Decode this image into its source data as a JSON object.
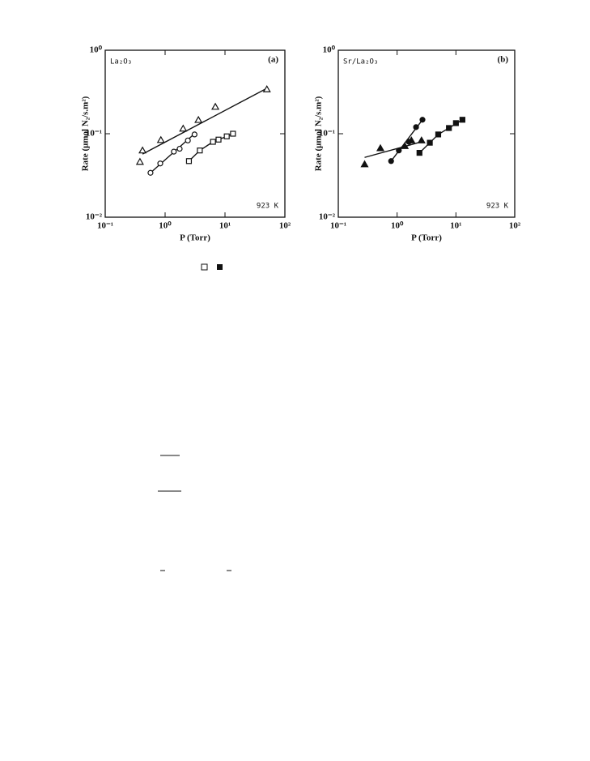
{
  "chart_data": [
    {
      "type": "scatter",
      "panel_label": "(a)",
      "sample": "La₂O₃",
      "temperature": "923 K",
      "xlabel": "P (Torr)",
      "ylabel": "Rate (μmol N₂/s.m²)",
      "log_x": true,
      "log_y": true,
      "xlim": [
        0.1,
        100
      ],
      "ylim": [
        0.01,
        1
      ],
      "xticks": [
        {
          "value": 0.1,
          "label": "10⁻¹"
        },
        {
          "value": 1,
          "label": "10⁰"
        },
        {
          "value": 10,
          "label": "10¹"
        },
        {
          "value": 100,
          "label": "10²"
        }
      ],
      "yticks": [
        {
          "value": 0.01,
          "label": "10⁻²"
        },
        {
          "value": 0.1,
          "label": "10⁻¹"
        },
        {
          "value": 1,
          "label": "10⁰"
        }
      ],
      "series": [
        {
          "marker": "triangle",
          "filled": false,
          "color": "#111111",
          "x": [
            0.38,
            0.42,
            0.85,
            2.0,
            3.6,
            6.9,
            50
          ],
          "y": [
            0.046,
            0.063,
            0.084,
            0.115,
            0.146,
            0.21,
            0.34
          ],
          "fit": {
            "x": [
              0.42,
              50
            ],
            "y": [
              0.057,
              0.35
            ]
          }
        },
        {
          "marker": "circle",
          "filled": false,
          "color": "#111111",
          "x": [
            0.57,
            0.83,
            1.4,
            1.75,
            2.4,
            3.1
          ],
          "y": [
            0.034,
            0.044,
            0.061,
            0.066,
            0.083,
            0.098
          ],
          "fit": {
            "x": [
              0.57,
              3.1
            ],
            "y": [
              0.034,
              0.1
            ]
          }
        },
        {
          "marker": "square",
          "filled": false,
          "color": "#111111",
          "x": [
            2.5,
            3.8,
            6.3,
            7.8,
            10.7,
            13.6
          ],
          "y": [
            0.047,
            0.063,
            0.08,
            0.085,
            0.093,
            0.1
          ],
          "fit": {
            "x": [
              2.5,
              3.8,
              6.3,
              10.7,
              13.6
            ],
            "y": [
              0.047,
              0.063,
              0.08,
              0.093,
              0.1
            ]
          }
        }
      ]
    },
    {
      "type": "scatter",
      "panel_label": "(b)",
      "sample": "Sr/La₂O₃",
      "temperature": "923 K",
      "xlabel": "P (Torr)",
      "ylabel": "Rate (μmol N₂/s.m²)",
      "log_x": true,
      "log_y": true,
      "xlim": [
        0.1,
        100
      ],
      "ylim": [
        0.01,
        1
      ],
      "xticks": [
        {
          "value": 0.1,
          "label": "10⁻¹"
        },
        {
          "value": 1,
          "label": "10⁰"
        },
        {
          "value": 10,
          "label": "10¹"
        },
        {
          "value": 100,
          "label": "10²"
        }
      ],
      "yticks": [
        {
          "value": 0.01,
          "label": "10⁻²"
        },
        {
          "value": 0.1,
          "label": "10⁻¹"
        },
        {
          "value": 1,
          "label": "10⁰"
        }
      ],
      "series": [
        {
          "marker": "triangle",
          "filled": true,
          "color": "#111111",
          "x": [
            0.28,
            0.52,
            1.35,
            1.75,
            2.6
          ],
          "y": [
            0.043,
            0.067,
            0.071,
            0.083,
            0.083
          ],
          "fit": {
            "x": [
              0.28,
              2.6
            ],
            "y": [
              0.052,
              0.08
            ]
          }
        },
        {
          "marker": "circle",
          "filled": true,
          "color": "#111111",
          "x": [
            0.79,
            1.07,
            1.58,
            2.1,
            2.7
          ],
          "y": [
            0.047,
            0.063,
            0.08,
            0.12,
            0.147
          ],
          "fit": {
            "x": [
              0.79,
              2.7
            ],
            "y": [
              0.047,
              0.147
            ]
          }
        },
        {
          "marker": "square",
          "filled": true,
          "color": "#111111",
          "x": [
            2.4,
            3.6,
            5.0,
            7.6,
            10,
            12.9
          ],
          "y": [
            0.059,
            0.078,
            0.098,
            0.117,
            0.134,
            0.147
          ],
          "fit": {
            "x": [
              2.4,
              3.6,
              5.0,
              7.6,
              12.9
            ],
            "y": [
              0.059,
              0.078,
              0.098,
              0.117,
              0.147
            ]
          }
        }
      ]
    }
  ]
}
